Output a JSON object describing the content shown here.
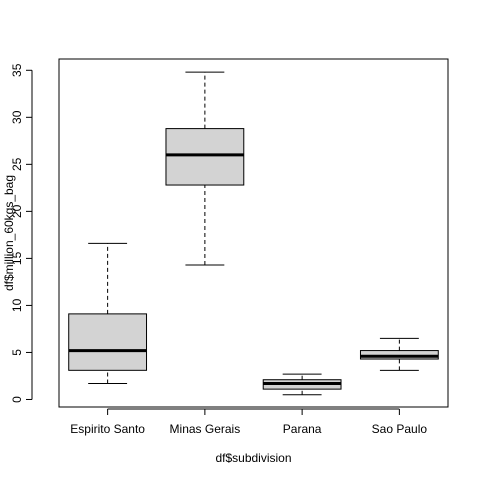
{
  "colors": {
    "box_fill": "#d3d3d3",
    "stroke": "#000000",
    "background": "#ffffff"
  },
  "chart_data": {
    "type": "box",
    "title": "",
    "xlabel": "df$subdivision",
    "ylabel": "df$million_60kgs_bag",
    "ylim": [
      -0.8,
      36.2
    ],
    "y_ticks": [
      0,
      5,
      10,
      15,
      20,
      25,
      30,
      35
    ],
    "y_tick_labels": [
      "0",
      "5",
      "10",
      "15",
      "20",
      "25",
      "30",
      "35"
    ],
    "grid": false,
    "legend": "none",
    "categories": [
      "Espirito Santo",
      "Minas Gerais",
      "Parana",
      "Sao Paulo"
    ],
    "boxes": [
      {
        "category": "Espirito Santo",
        "min": 1.7,
        "q1": 3.1,
        "median": 5.2,
        "q3": 9.1,
        "max": 16.6
      },
      {
        "category": "Minas Gerais",
        "min": 14.3,
        "q1": 22.8,
        "median": 26.0,
        "q3": 28.8,
        "max": 34.8
      },
      {
        "category": "Parana",
        "min": 0.5,
        "q1": 1.1,
        "median": 1.7,
        "q3": 2.1,
        "max": 2.7
      },
      {
        "category": "Sao Paulo",
        "min": 3.1,
        "q1": 4.3,
        "median": 4.6,
        "q3": 5.2,
        "max": 6.5
      }
    ]
  }
}
